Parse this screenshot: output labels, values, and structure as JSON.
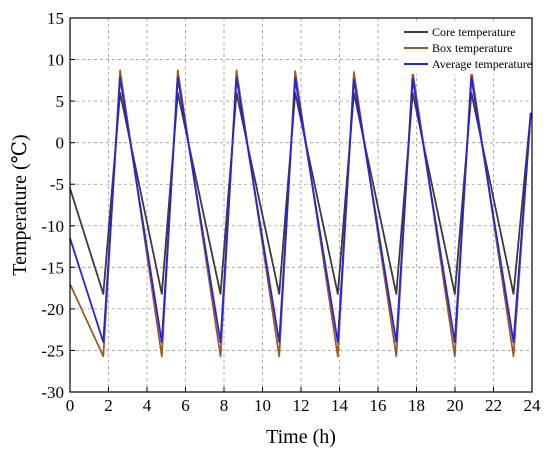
{
  "chart_data": {
    "type": "line",
    "xlabel": "Time (h)",
    "ylabel": "Temperature (℃)",
    "xlim": [
      0,
      24
    ],
    "ylim": [
      -30,
      15
    ],
    "xticks": [
      "0",
      "2",
      "4",
      "6",
      "8",
      "10",
      "12",
      "14",
      "16",
      "18",
      "20",
      "22",
      "24"
    ],
    "yticks": [
      "-30",
      "-25",
      "-20",
      "-15",
      "-10",
      "-5",
      "0",
      "5",
      "10",
      "15"
    ],
    "grid": true,
    "legend_position": "top-right",
    "series": [
      {
        "name": "Core temperature",
        "color": "#3a3a3a",
        "x": [
          0,
          1.73,
          2.6,
          4.77,
          5.6,
          7.82,
          8.65,
          10.87,
          11.7,
          13.91,
          14.75,
          16.95,
          17.8,
          19.99,
          20.85,
          23.04,
          23.93,
          24
        ],
        "y": [
          -5.5,
          -18.2,
          6,
          -18.2,
          6,
          -18.2,
          6,
          -18.2,
          6,
          -18.2,
          6,
          -18.2,
          6,
          -18.2,
          6,
          -18.2,
          3.5,
          3.5
        ]
      },
      {
        "name": "Box temperature",
        "color": "#9b5a22",
        "x": [
          0,
          1.73,
          2.6,
          4.77,
          5.6,
          7.82,
          8.65,
          10.87,
          11.7,
          13.91,
          14.75,
          16.95,
          17.8,
          19.99,
          20.85,
          23.04,
          23.93,
          24
        ],
        "y": [
          -17,
          -25.7,
          8.7,
          -25.7,
          8.7,
          -25.7,
          8.7,
          -25.7,
          8.6,
          -25.7,
          8.5,
          -25.7,
          8.6,
          -25.7,
          8.7,
          -25.7,
          3.5,
          3.5
        ]
      },
      {
        "name": "Average temperature",
        "color": "#2424e0",
        "x": [
          0,
          1.73,
          2.6,
          4.77,
          5.6,
          7.82,
          8.65,
          10.87,
          11.7,
          13.91,
          14.75,
          16.95,
          17.8,
          19.99,
          20.85,
          23.04,
          23.93,
          24
        ],
        "y": [
          -11.5,
          -24,
          7.8,
          -24,
          7.8,
          -24,
          7.8,
          -24,
          7.7,
          -24,
          7.6,
          -24,
          7.7,
          -24,
          7.8,
          -24,
          3.5,
          3.5
        ]
      }
    ]
  }
}
